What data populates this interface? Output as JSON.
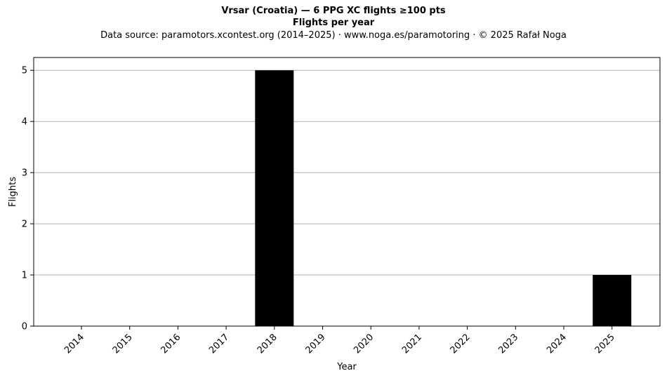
{
  "chart_data": {
    "type": "bar",
    "title": "Vrsar (Croatia)  —  6 PPG XC flights ≥100 pts",
    "subtitle": "Flights per year",
    "source_note": "Data source: paramotors.xcontest.org (2014–2025)  ·  www.noga.es/paramotoring  ·  © 2025 Rafał Noga",
    "categories": [
      "2014",
      "2015",
      "2016",
      "2017",
      "2018",
      "2019",
      "2020",
      "2021",
      "2022",
      "2023",
      "2024",
      "2025"
    ],
    "values": [
      0,
      0,
      0,
      0,
      5,
      0,
      0,
      0,
      0,
      0,
      0,
      1
    ],
    "xlabel": "Year",
    "ylabel": "Flights",
    "ylim": [
      0,
      5.25
    ],
    "yticks": [
      0,
      1,
      2,
      3,
      4,
      5
    ],
    "grid": "y",
    "bar_color": "#000000",
    "grid_color": "#b0b0b0"
  }
}
